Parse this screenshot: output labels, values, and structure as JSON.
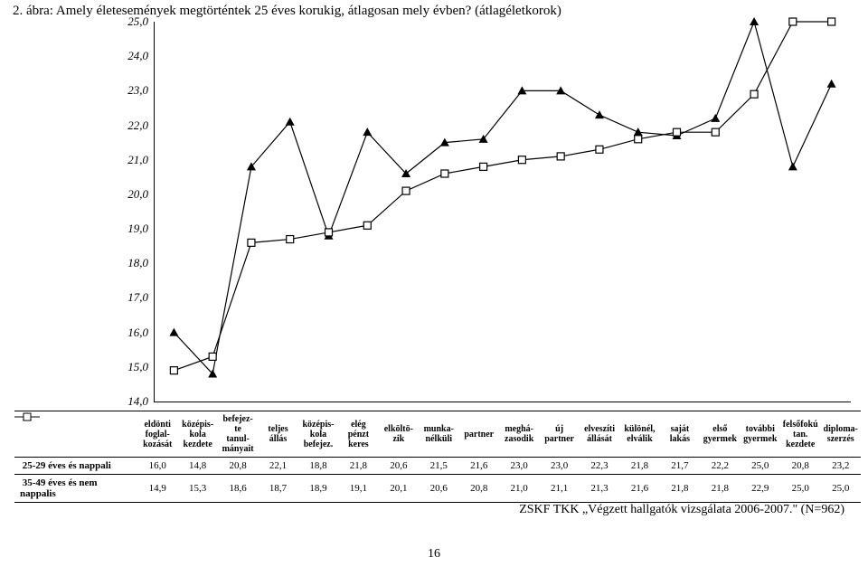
{
  "title": "2. ábra: Amely életesemények megtörténtek 25 éves korukig, átlagosan mely évben? (átlagéletkorok)",
  "footnote": "ZSKF TKK „Végzett hallgatók vizsgálata 2006-2007.\" (N=962)",
  "pageNumber": "16",
  "chart": {
    "ylim": [
      14,
      25
    ],
    "yticks": [
      14,
      15,
      16,
      17,
      18,
      19,
      20,
      21,
      22,
      23,
      24,
      25
    ],
    "ytick_labels": [
      "14,0",
      "15,0",
      "16,0",
      "17,0",
      "18,0",
      "19,0",
      "20,0",
      "21,0",
      "22,0",
      "23,0",
      "24,0",
      "25,0"
    ],
    "background_color": "#ffffff",
    "axis_color": "#000000",
    "series": [
      {
        "name": "25-29 éves és nappali",
        "marker": "triangle",
        "color": "#000000",
        "values": [
          16.0,
          14.8,
          20.8,
          22.1,
          18.8,
          21.8,
          20.6,
          21.5,
          21.6,
          23.0,
          23.0,
          22.3,
          21.8,
          21.7,
          22.2,
          25.0,
          20.8,
          23.2
        ]
      },
      {
        "name": "35-49 éves és nem nappalis",
        "marker": "square",
        "color": "#000000",
        "values": [
          14.9,
          15.3,
          18.6,
          18.7,
          18.9,
          19.1,
          20.1,
          20.6,
          20.8,
          21.0,
          21.1,
          21.3,
          21.6,
          21.8,
          21.8,
          22.9,
          25.0,
          25.0
        ]
      }
    ],
    "categories": [
      "eldönti foglal- kozását",
      "középis- kola kezdete",
      "befejez-te tanul- mányait",
      "teljes állás",
      "középis- kola befejez.",
      "elég pénzt keres",
      "elköltö- zik",
      "munka- nélküli",
      "partner",
      "meghá- zasodik",
      "új partner",
      "elveszíti állását",
      "különél, elválik",
      "saját lakás",
      "első gyermek",
      "további gyermek",
      "felsőfokú tan. kezdete",
      "diploma- szerzés"
    ]
  },
  "table": {
    "row1_label": "25-29 éves és nappali",
    "row2_label": "35-49 éves és nem nappalis",
    "row1": [
      "16,0",
      "14,8",
      "20,8",
      "22,1",
      "18,8",
      "21,8",
      "20,6",
      "21,5",
      "21,6",
      "23,0",
      "23,0",
      "22,3",
      "21,8",
      "21,7",
      "22,2",
      "25,0",
      "20,8",
      "23,2"
    ],
    "row2": [
      "14,9",
      "15,3",
      "18,6",
      "18,7",
      "18,9",
      "19,1",
      "20,1",
      "20,6",
      "20,8",
      "21,0",
      "21,1",
      "21,3",
      "21,6",
      "21,8",
      "21,8",
      "22,9",
      "25,0",
      "25,0"
    ]
  }
}
